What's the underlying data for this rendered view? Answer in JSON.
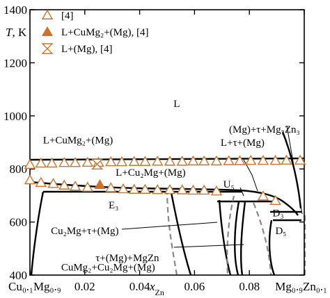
{
  "chart_data": {
    "type": "scatter",
    "xlabel": {
      "base": "x",
      "sub": "Zn"
    },
    "ylabel": {
      "italic": "T",
      "rest": ", K"
    },
    "xlim": [
      0,
      0.1
    ],
    "ylim": [
      400,
      1400
    ],
    "x_ticks": [
      {
        "x": 0,
        "label": "Cu₀.₁Mg₀.₉"
      },
      {
        "x": 0.02,
        "label": "0.02"
      },
      {
        "x": 0.04,
        "label": "0.04"
      },
      {
        "x": 0.06,
        "label": "0.06"
      },
      {
        "x": 0.08,
        "label": "0.08"
      },
      {
        "x": 0.1,
        "label": "Mg₀.₉Zn₀.₁"
      }
    ],
    "y_ticks": [
      400,
      600,
      800,
      1000,
      1200,
      1400
    ],
    "legend": [
      {
        "marker": "open-triangle",
        "label": "[4]"
      },
      {
        "marker": "filled-triangle",
        "label": "L+CuMg₂+(Mg), [4]"
      },
      {
        "marker": "hourglass",
        "label": "L+(Mg), [4]"
      }
    ],
    "regions": [
      {
        "label": "L",
        "x": 0.0535,
        "y": 1033
      },
      {
        "label": "L+CuMg₂+(Mg)",
        "x": 0.0175,
        "y": 896
      },
      {
        "label": "L+τ+(Mg)",
        "x": 0.0775,
        "y": 887
      },
      {
        "label": "(Mg)+τ+Mg₇Zn₃",
        "x": 0.0855,
        "y": 937
      },
      {
        "label": "L+Cu₂Mg+(Mg)",
        "x": 0.044,
        "y": 775
      },
      {
        "label": "U₅",
        "x": 0.0725,
        "y": 730
      },
      {
        "label": "E₃",
        "x": 0.0305,
        "y": 651
      },
      {
        "label": "D₃",
        "x": 0.0905,
        "y": 621
      },
      {
        "label": "D₅",
        "x": 0.0915,
        "y": 555
      },
      {
        "label": "Cu₂Mg+τ+(Mg)",
        "x": 0.02,
        "y": 554
      },
      {
        "label": "τ+(Mg)+MgZn",
        "x": 0.0355,
        "y": 452
      },
      {
        "label": "CuMg₂+Cu₂Mg+(Mg)",
        "x": 0.0285,
        "y": 417
      }
    ],
    "series": [
      {
        "marker": "open-triangle",
        "points": [
          [
            0,
            816
          ],
          [
            0.004,
            821
          ],
          [
            0.008,
            821
          ],
          [
            0.0125,
            823
          ],
          [
            0.0165,
            823
          ],
          [
            0.021,
            824
          ],
          [
            0.025,
            824
          ],
          [
            0.0295,
            826
          ],
          [
            0.0335,
            826
          ],
          [
            0.038,
            827
          ],
          [
            0.042,
            827
          ],
          [
            0.0465,
            828
          ],
          [
            0.051,
            828
          ],
          [
            0.0555,
            828
          ],
          [
            0.0595,
            829
          ],
          [
            0.0635,
            829
          ],
          [
            0.068,
            829
          ],
          [
            0.0725,
            830
          ],
          [
            0.0765,
            830
          ],
          [
            0.0805,
            831
          ],
          [
            0.085,
            831
          ],
          [
            0.0895,
            831
          ],
          [
            0.0935,
            832
          ],
          [
            0.0985,
            832
          ],
          [
            0,
            758
          ],
          [
            0.004,
            748
          ],
          [
            0.0085,
            744
          ],
          [
            0.0125,
            738
          ],
          [
            0.0165,
            734
          ],
          [
            0.021,
            730
          ],
          [
            0.0295,
            728
          ],
          [
            0.034,
            724
          ],
          [
            0.038,
            722
          ],
          [
            0.042,
            722
          ],
          [
            0.0465,
            721
          ],
          [
            0.051,
            721
          ],
          [
            0.0555,
            720
          ],
          [
            0.0595,
            719
          ],
          [
            0.0635,
            719
          ],
          [
            0.068,
            716
          ],
          [
            0.085,
            697
          ],
          [
            0.0895,
            680
          ]
        ]
      },
      {
        "marker": "filled-triangle",
        "points": [
          [
            0.0255,
            740
          ]
        ]
      },
      {
        "marker": "hourglass",
        "points": [
          [
            0.0245,
            818
          ]
        ]
      }
    ]
  }
}
